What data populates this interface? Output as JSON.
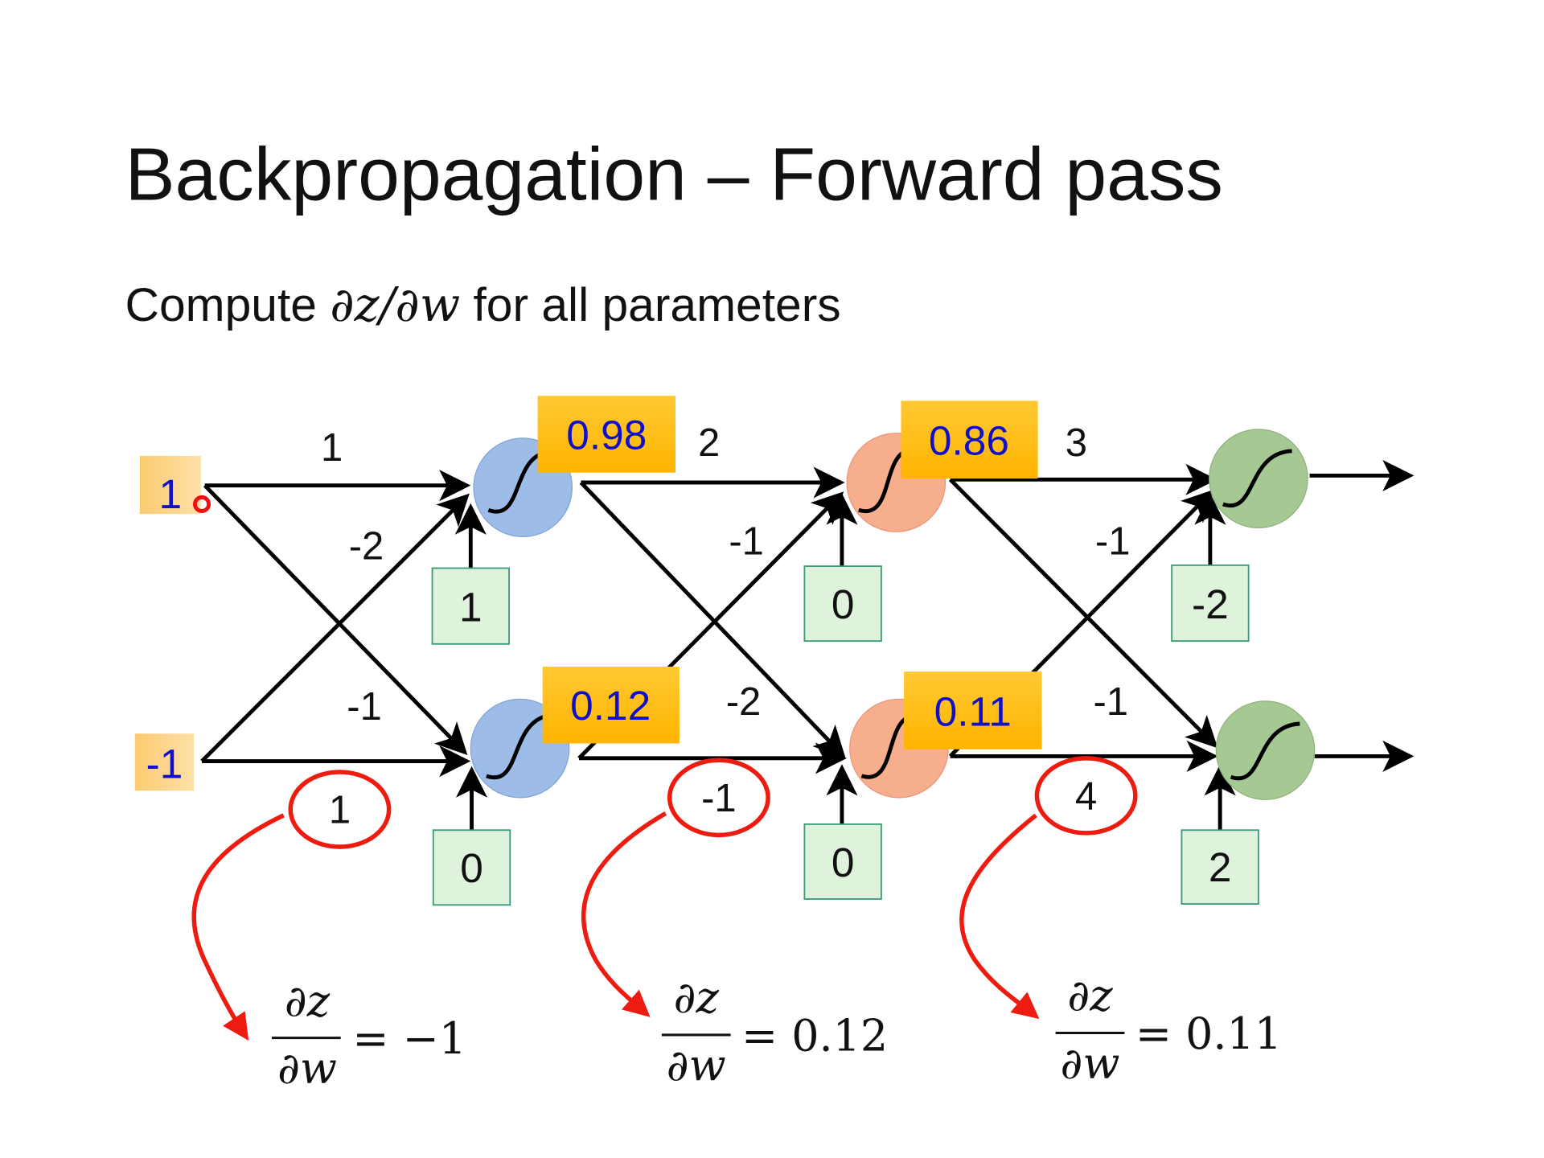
{
  "slide": {
    "title": "Backpropagation – Forward pass",
    "subtitle_prefix": "Compute ",
    "subtitle_math": "∂z/∂w",
    "subtitle_suffix": " for all parameters"
  },
  "inputs": [
    "1",
    "-1"
  ],
  "layer1": {
    "outputs": [
      "0.98",
      "0.12"
    ],
    "biases": [
      "1",
      "0"
    ],
    "weights": [
      "1",
      "-2",
      "-1",
      "1"
    ]
  },
  "layer2": {
    "outputs": [
      "0.86",
      "0.11"
    ],
    "biases": [
      "0",
      "0"
    ],
    "weights": [
      "2",
      "-1",
      "-2",
      "-1"
    ]
  },
  "layer3": {
    "biases": [
      "-2",
      "2"
    ],
    "weights": [
      "3",
      "-1",
      "-1",
      "4"
    ]
  },
  "annotations": [
    {
      "circled": "1",
      "numerator": "∂z",
      "denominator": "∂w",
      "result": "= −1"
    },
    {
      "circled": "-1",
      "numerator": "∂z",
      "denominator": "∂w",
      "result": "= 0.12"
    },
    {
      "circled": "4",
      "numerator": "∂z",
      "denominator": "∂w",
      "result": "= 0.11"
    }
  ],
  "colors": {
    "input": "#fdd386",
    "output_box": "#ffbe1a",
    "layer1": "#9dbde8",
    "layer2": "#f7ae8c",
    "layer3": "#a6c994",
    "bias": "#dff2dc",
    "annotation": "#ee1c10"
  }
}
